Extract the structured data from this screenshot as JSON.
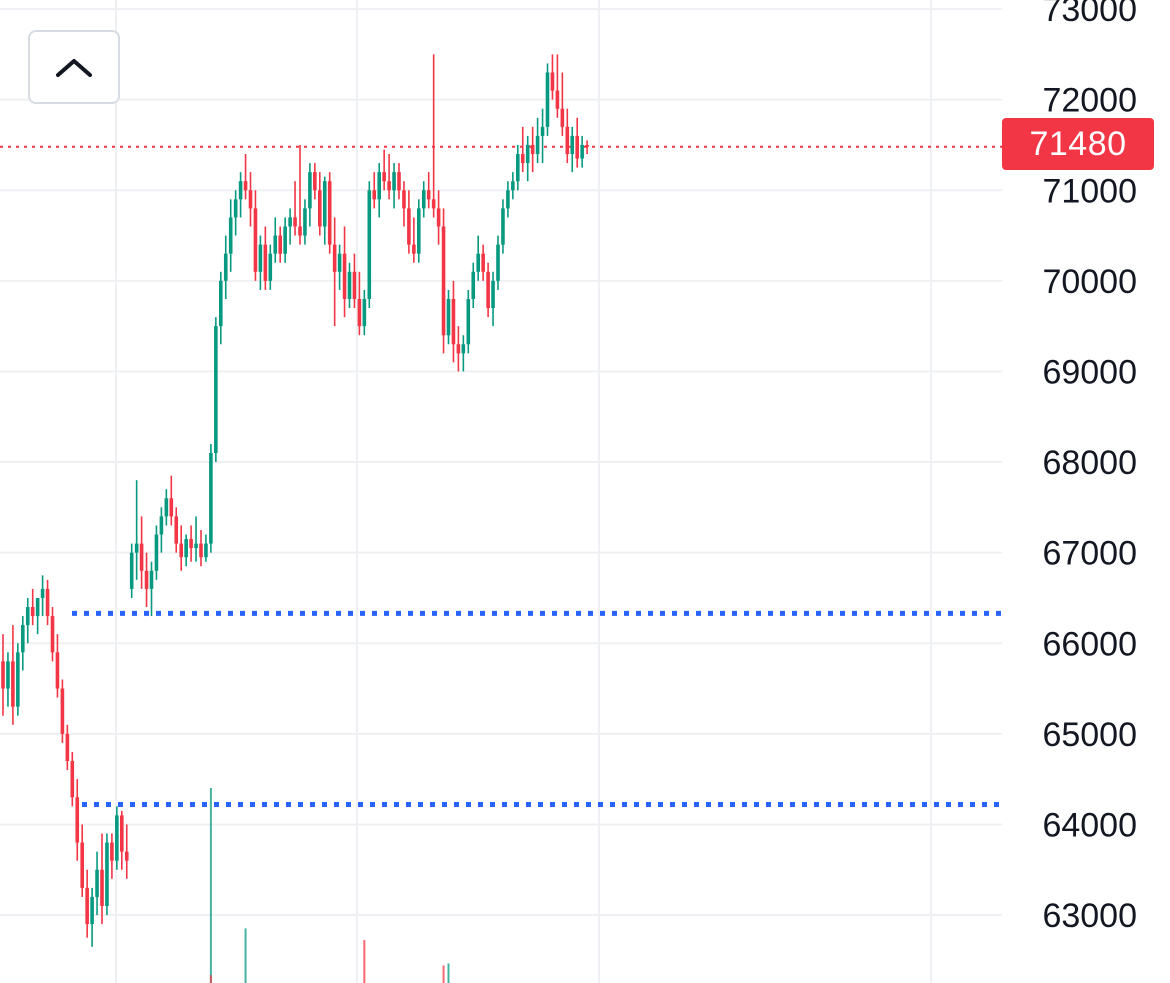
{
  "colors": {
    "up": "#089981",
    "down": "#f23645",
    "grid": "#eef0f3",
    "support_line": "#2962ff",
    "price_line": "#f23645",
    "axis_text": "#131722"
  },
  "controls": {
    "collapse_icon": "chevron-up-icon"
  },
  "chart_data": {
    "type": "candlestick",
    "y_ticks": [
      "73000",
      "72000",
      "71000",
      "70000",
      "69000",
      "68000",
      "67000",
      "66000",
      "65000",
      "64000",
      "63000"
    ],
    "ylim": [
      62250,
      73100
    ],
    "grid": true,
    "current_price": 71480,
    "current_price_label": "71480",
    "horizontal_lines": [
      {
        "price": 66330,
        "style": "dotted"
      },
      {
        "price": 64220,
        "style": "dotted"
      }
    ],
    "candles": [
      [
        65800,
        66100,
        65200,
        65500
      ],
      [
        65500,
        65900,
        65300,
        65800
      ],
      [
        65800,
        66200,
        65100,
        65300
      ],
      [
        65300,
        66000,
        65200,
        65900
      ],
      [
        65900,
        66300,
        65700,
        66200
      ],
      [
        66200,
        66500,
        66000,
        66400
      ],
      [
        66400,
        66600,
        66200,
        66300
      ],
      [
        66300,
        66500,
        66100,
        66500
      ],
      [
        66500,
        66750,
        66300,
        66600
      ],
      [
        66600,
        66700,
        66200,
        66300
      ],
      [
        66300,
        66400,
        65800,
        65900
      ],
      [
        65900,
        66100,
        65400,
        65500
      ],
      [
        65500,
        65600,
        64900,
        65000
      ],
      [
        65000,
        65100,
        64600,
        64700
      ],
      [
        64700,
        64800,
        64200,
        64300
      ],
      [
        64300,
        64500,
        63600,
        63800
      ],
      [
        63800,
        64000,
        63200,
        63300
      ],
      [
        63300,
        63500,
        62750,
        62900
      ],
      [
        62900,
        63300,
        62650,
        63200
      ],
      [
        63200,
        63700,
        63000,
        63500
      ],
      [
        63500,
        63900,
        62900,
        63100
      ],
      [
        63100,
        63900,
        63000,
        63800
      ],
      [
        63800,
        63900,
        63400,
        63600
      ],
      [
        63600,
        64200,
        63500,
        64100
      ],
      [
        64100,
        64150,
        63500,
        63700
      ],
      [
        63700,
        64000,
        63400,
        63600
      ],
      [
        66600,
        67100,
        66500,
        67000
      ],
      [
        67000,
        67800,
        66700,
        67100
      ],
      [
        67100,
        67400,
        66600,
        66800
      ],
      [
        66800,
        67000,
        66400,
        66600
      ],
      [
        66600,
        66900,
        66300,
        66800
      ],
      [
        66800,
        67300,
        66700,
        67200
      ],
      [
        67200,
        67500,
        67000,
        67400
      ],
      [
        67400,
        67700,
        67300,
        67600
      ],
      [
        67600,
        67850,
        67300,
        67400
      ],
      [
        67400,
        67500,
        67000,
        67100
      ],
      [
        67100,
        67300,
        66800,
        66950
      ],
      [
        66950,
        67200,
        66850,
        67150
      ],
      [
        67150,
        67300,
        66900,
        67050
      ],
      [
        67050,
        67400,
        66900,
        67100
      ],
      [
        67100,
        67250,
        66850,
        66950
      ],
      [
        66950,
        67200,
        66900,
        67100
      ],
      [
        67100,
        68200,
        67000,
        68100
      ],
      [
        68100,
        69600,
        68000,
        69500
      ],
      [
        69500,
        70100,
        69300,
        70000
      ],
      [
        70000,
        70500,
        69800,
        70300
      ],
      [
        70300,
        70900,
        70100,
        70700
      ],
      [
        70700,
        71000,
        70500,
        70900
      ],
      [
        70900,
        71200,
        70700,
        71100
      ],
      [
        71100,
        71400,
        70900,
        71000
      ],
      [
        71000,
        71200,
        70600,
        70800
      ],
      [
        70800,
        71000,
        70000,
        70100
      ],
      [
        70100,
        70500,
        69900,
        70400
      ],
      [
        70400,
        70600,
        69900,
        70000
      ],
      [
        70000,
        70400,
        69900,
        70300
      ],
      [
        70300,
        70700,
        70200,
        70500
      ],
      [
        70500,
        70600,
        70200,
        70300
      ],
      [
        70300,
        70700,
        70200,
        70600
      ],
      [
        70600,
        70800,
        70400,
        70700
      ],
      [
        70700,
        71100,
        70500,
        70600
      ],
      [
        70600,
        71500,
        70400,
        70500
      ],
      [
        70500,
        70900,
        70400,
        70800
      ],
      [
        70800,
        71300,
        70600,
        71200
      ],
      [
        71200,
        71300,
        70900,
        71000
      ],
      [
        71000,
        71200,
        70500,
        70600
      ],
      [
        70600,
        71150,
        70400,
        71100
      ],
      [
        71100,
        71200,
        70300,
        70400
      ],
      [
        70400,
        70700,
        69500,
        70100
      ],
      [
        70100,
        70400,
        69900,
        70300
      ],
      [
        70300,
        70600,
        69600,
        69800
      ],
      [
        69800,
        70200,
        69700,
        70100
      ],
      [
        70100,
        70300,
        69700,
        69800
      ],
      [
        69800,
        70100,
        69400,
        69500
      ],
      [
        69500,
        69900,
        69400,
        69800
      ],
      [
        69800,
        71100,
        69700,
        71000
      ],
      [
        71000,
        71200,
        70800,
        70900
      ],
      [
        70900,
        71300,
        70700,
        71200
      ],
      [
        71200,
        71450,
        71000,
        71100
      ],
      [
        71100,
        71400,
        70900,
        71000
      ],
      [
        71000,
        71300,
        70800,
        71200
      ],
      [
        71200,
        71300,
        70900,
        71000
      ],
      [
        71000,
        71100,
        70600,
        70800
      ],
      [
        70800,
        71000,
        70300,
        70400
      ],
      [
        70400,
        70700,
        70200,
        70300
      ],
      [
        70300,
        70900,
        70200,
        70800
      ],
      [
        70800,
        71100,
        70700,
        71000
      ],
      [
        71000,
        71200,
        70800,
        70900
      ],
      [
        70900,
        72500,
        70700,
        70800
      ],
      [
        70800,
        71000,
        70400,
        70600
      ],
      [
        70600,
        70800,
        69200,
        69400
      ],
      [
        69400,
        69900,
        69300,
        69800
      ],
      [
        69800,
        70000,
        69100,
        69300
      ],
      [
        69300,
        69500,
        69000,
        69200
      ],
      [
        69200,
        69400,
        69000,
        69300
      ],
      [
        69300,
        69900,
        69200,
        69800
      ],
      [
        69800,
        70200,
        69700,
        70100
      ],
      [
        70100,
        70500,
        70000,
        70300
      ],
      [
        70300,
        70400,
        70000,
        70100
      ],
      [
        70100,
        70200,
        69600,
        69700
      ],
      [
        69700,
        70100,
        69500,
        70000
      ],
      [
        70000,
        70500,
        69900,
        70400
      ],
      [
        70400,
        70900,
        70300,
        70800
      ],
      [
        70800,
        71100,
        70700,
        71000
      ],
      [
        71000,
        71200,
        70900,
        71100
      ],
      [
        71100,
        71500,
        71000,
        71400
      ],
      [
        71400,
        71700,
        71200,
        71300
      ],
      [
        71300,
        71600,
        71100,
        71500
      ],
      [
        71500,
        71700,
        71200,
        71400
      ],
      [
        71400,
        71800,
        71300,
        71600
      ],
      [
        71600,
        71900,
        71300,
        71700
      ],
      [
        71700,
        72400,
        71600,
        72300
      ],
      [
        72300,
        72500,
        72000,
        72100
      ],
      [
        72100,
        72500,
        71800,
        71900
      ],
      [
        71900,
        72300,
        71600,
        71700
      ],
      [
        71700,
        71900,
        71300,
        71400
      ],
      [
        71400,
        71700,
        71200,
        71600
      ],
      [
        71600,
        71800,
        71250,
        71350
      ],
      [
        71350,
        71600,
        71250,
        71500
      ],
      [
        71500,
        71550,
        71400,
        71480
      ]
    ],
    "volume_bars": [
      {
        "x_index": 42,
        "value": 1.0,
        "dir": "up"
      },
      {
        "x_index": 42,
        "value": 0.04,
        "dir": "down"
      },
      {
        "x_index": 49,
        "value": 0.28,
        "dir": "up"
      },
      {
        "x_index": 73,
        "value": 0.22,
        "dir": "down"
      },
      {
        "x_index": 89,
        "value": 0.09,
        "dir": "down"
      },
      {
        "x_index": 90,
        "value": 0.1,
        "dir": "up"
      }
    ]
  }
}
